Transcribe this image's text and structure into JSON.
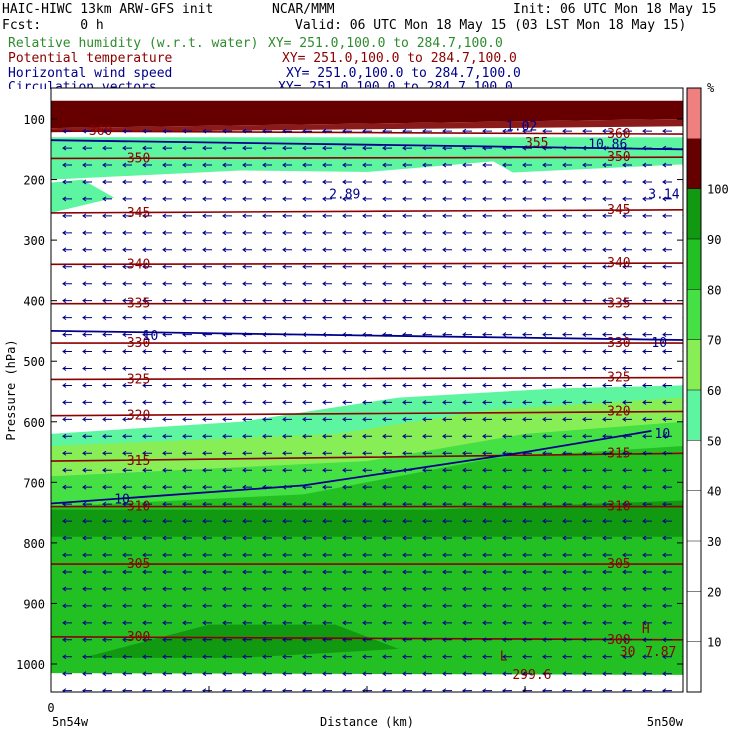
{
  "header": {
    "model": "HAIC-HIWC 13km ARW-GFS init",
    "org": "NCAR/MMM",
    "init": "Init: 06 UTC Mon 18 May 15",
    "fcst": "Fcst:     0 h",
    "valid": "Valid: 06 UTC Mon 18 May 15 (03 LST Mon 18 May 15)",
    "fields": [
      {
        "name": "Relative humidity (w.r.t. water)",
        "xy": "XY= 251.0,100.0 to 284.7,100.0",
        "color": "#2e8b2e"
      },
      {
        "name": "Potential temperature",
        "xy": "XY= 251.0,100.0 to 284.7,100.0",
        "color": "#8b0000"
      },
      {
        "name": "Horizontal wind speed",
        "xy": "XY= 251.0,100.0 to 284.7,100.0",
        "color": "#00008b"
      },
      {
        "name": "Circulation vectors",
        "xy": "XY= 251.0,100.0 to 284.7,100.0",
        "color": "#00008b"
      }
    ]
  },
  "chart_data": {
    "type": "heatmap",
    "ylabel": "Pressure (hPa)",
    "xlabel": "Distance (km)",
    "x_start_tick": "0",
    "x_left_label": "5n54w",
    "x_right_label": "5n50w",
    "y_ticks": [
      100,
      200,
      300,
      400,
      500,
      600,
      700,
      800,
      900,
      1000
    ],
    "ylim": [
      1050,
      70
    ],
    "colorbar": {
      "unit": "%",
      "ticks": [
        10,
        20,
        30,
        40,
        50,
        60,
        70,
        80,
        90,
        100
      ],
      "bands": [
        {
          "from": 0,
          "to": 50,
          "color": "#ffffff"
        },
        {
          "from": 50,
          "to": 60,
          "color": "#5ef5a0"
        },
        {
          "from": 60,
          "to": 70,
          "color": "#88ee55"
        },
        {
          "from": 70,
          "to": 80,
          "color": "#44e044"
        },
        {
          "from": 80,
          "to": 90,
          "color": "#22c022"
        },
        {
          "from": 90,
          "to": 100,
          "color": "#119911"
        },
        {
          "from": 100,
          "to": 110,
          "color": "#660000"
        }
      ],
      "top_color": "#f08080"
    },
    "isentropes": [
      {
        "theta": "300",
        "p_left": 955,
        "p_right": 960
      },
      {
        "theta": "305",
        "p_left": 835,
        "p_right": 835
      },
      {
        "theta": "310",
        "p_left": 740,
        "p_right": 740
      },
      {
        "theta": "315",
        "p_left": 665,
        "p_right": 652
      },
      {
        "theta": "320",
        "p_left": 590,
        "p_right": 583
      },
      {
        "theta": "325",
        "p_left": 530,
        "p_right": 527
      },
      {
        "theta": "330",
        "p_left": 470,
        "p_right": 470
      },
      {
        "theta": "335",
        "p_left": 405,
        "p_right": 405
      },
      {
        "theta": "340",
        "p_left": 340,
        "p_right": 338
      },
      {
        "theta": "345",
        "p_left": 255,
        "p_right": 250
      },
      {
        "theta": "350",
        "p_left": 165,
        "p_right": 163
      },
      {
        "theta": "360",
        "p_left": 120,
        "p_right": 125
      }
    ],
    "wind_isotachs": [
      {
        "value": "10",
        "p_left": 450,
        "p_right": 465
      },
      {
        "value": "10",
        "p_left": 735,
        "p_right": 615
      },
      {
        "value": "10",
        "p_left": 135,
        "p_right": 150
      }
    ],
    "annotations": [
      {
        "text": "2.89",
        "x": 0.44,
        "p": 225,
        "color": "#00008b"
      },
      {
        "text": "3.14",
        "x": 0.945,
        "p": 225,
        "color": "#00008b"
      },
      {
        "text": "299.6",
        "x": 0.73,
        "p": 1018,
        "color": "#8b0000"
      },
      {
        "text": "L",
        "x": 0.71,
        "p": 988,
        "color": "#8b0000"
      },
      {
        "text": "H",
        "x": 0.935,
        "p": 942,
        "color": "#8b0000"
      },
      {
        "text": "7.87",
        "x": 0.94,
        "p": 980,
        "color": "#8b0000"
      },
      {
        "text": "30",
        "x": 0.9,
        "p": 980,
        "color": "#8b0000"
      },
      {
        "text": "10",
        "x": 0.955,
        "p": 620,
        "color": "#00008b"
      },
      {
        "text": "10",
        "x": 0.1,
        "p": 728,
        "color": "#00008b"
      },
      {
        "text": "10",
        "x": 0.145,
        "p": 458,
        "color": "#00008b"
      },
      {
        "text": "10",
        "x": 0.95,
        "p": 470,
        "color": "#00008b"
      },
      {
        "text": "355",
        "x": 0.75,
        "p": 140,
        "color": "#8b0000"
      },
      {
        "text": "10.86",
        "x": 0.85,
        "p": 142,
        "color": "#00008b"
      },
      {
        "text": "360",
        "x": 0.88,
        "p": 125,
        "color": "#8b0000"
      },
      {
        "text": "1.02",
        "x": 0.72,
        "p": 112,
        "color": "#00008b"
      },
      {
        "text": "40",
        "x": 1.04,
        "p": 128,
        "color": "#8b0000"
      }
    ],
    "wind": {
      "direction": "easterly",
      "dominant": "westward arrows"
    }
  }
}
